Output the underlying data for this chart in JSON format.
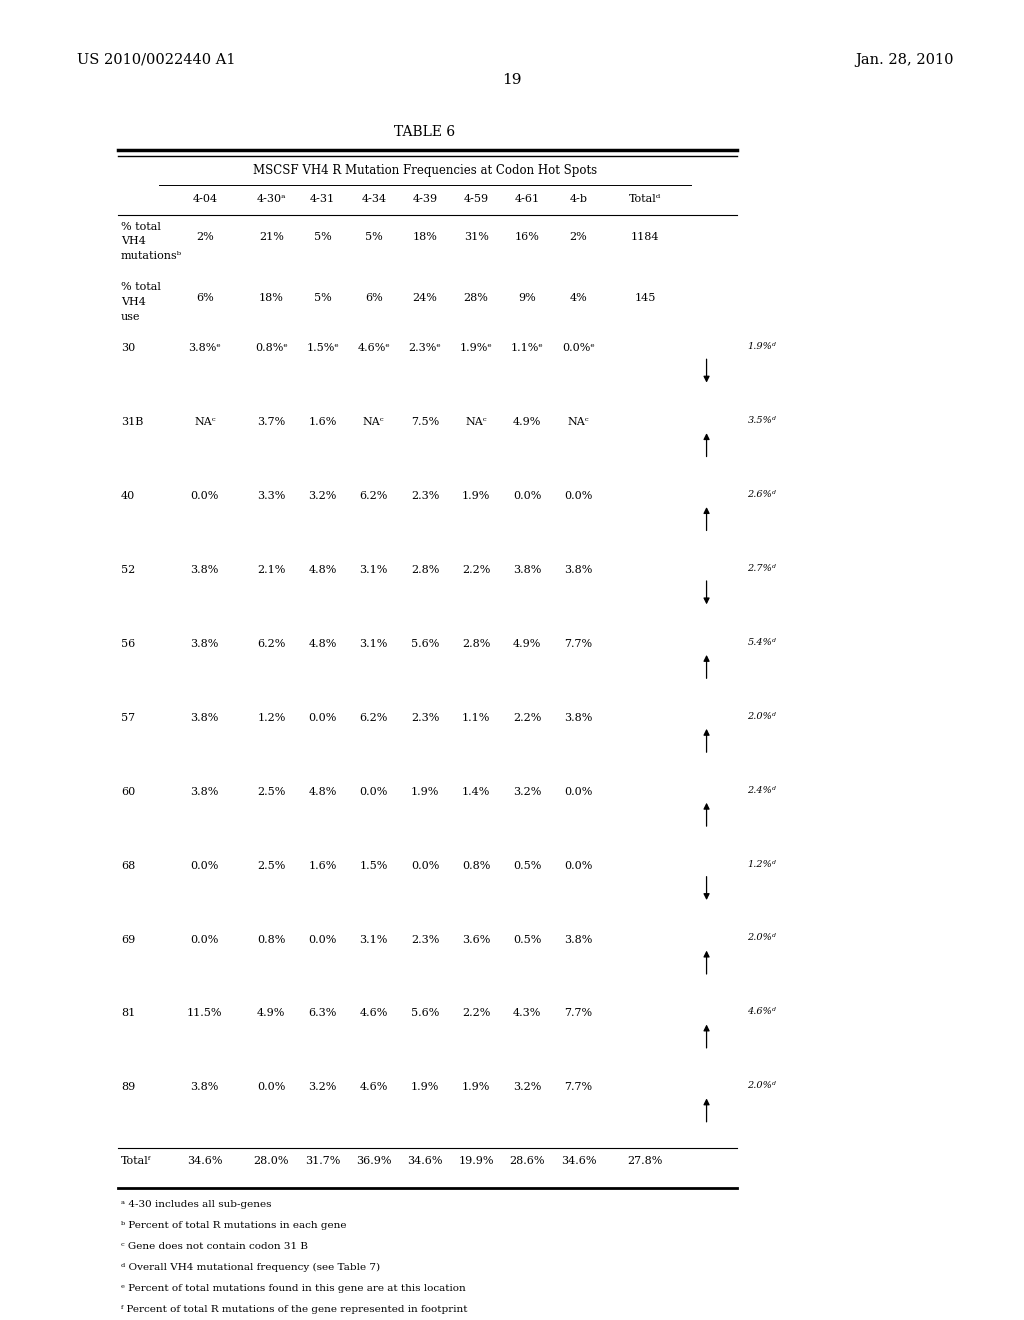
{
  "patent_left": "US 2010/0022440 A1",
  "patent_right": "Jan. 28, 2010",
  "page_number": "19",
  "table_title": "TABLE 6",
  "table_subtitle": "MSCSF VH4 R Mutation Frequencies at Codon Hot Spots",
  "col_headers": [
    "4-04",
    "4-30ᵃ",
    "4-31",
    "4-34",
    "4-39",
    "4-59",
    "4-61",
    "4-b",
    "Totalᵈ"
  ],
  "data_rows": [
    {
      "label": "30",
      "vals": [
        "3.8%ᵉ",
        "0.8%ᵉ",
        "1.5%ᵉ",
        "4.6%ᵉ",
        "2.3%ᵉ",
        "1.9%ᵉ",
        "1.1%ᵉ",
        "0.0%ᵉ"
      ],
      "arrow": "down",
      "arrow_val": "1.9%ᵈ"
    },
    {
      "label": "31B",
      "vals": [
        "NAᶜ",
        "3.7%",
        "1.6%",
        "NAᶜ",
        "7.5%",
        "NAᶜ",
        "4.9%",
        "NAᶜ"
      ],
      "arrow": "up",
      "arrow_val": "3.5%ᵈ"
    },
    {
      "label": "40",
      "vals": [
        "0.0%",
        "3.3%",
        "3.2%",
        "6.2%",
        "2.3%",
        "1.9%",
        "0.0%",
        "0.0%"
      ],
      "arrow": "up",
      "arrow_val": "2.6%ᵈ"
    },
    {
      "label": "52",
      "vals": [
        "3.8%",
        "2.1%",
        "4.8%",
        "3.1%",
        "2.8%",
        "2.2%",
        "3.8%",
        "3.8%"
      ],
      "arrow": "down",
      "arrow_val": "2.7%ᵈ"
    },
    {
      "label": "56",
      "vals": [
        "3.8%",
        "6.2%",
        "4.8%",
        "3.1%",
        "5.6%",
        "2.8%",
        "4.9%",
        "7.7%"
      ],
      "arrow": "up",
      "arrow_val": "5.4%ᵈ"
    },
    {
      "label": "57",
      "vals": [
        "3.8%",
        "1.2%",
        "0.0%",
        "6.2%",
        "2.3%",
        "1.1%",
        "2.2%",
        "3.8%"
      ],
      "arrow": "up",
      "arrow_val": "2.0%ᵈ"
    },
    {
      "label": "60",
      "vals": [
        "3.8%",
        "2.5%",
        "4.8%",
        "0.0%",
        "1.9%",
        "1.4%",
        "3.2%",
        "0.0%"
      ],
      "arrow": "up",
      "arrow_val": "2.4%ᵈ"
    },
    {
      "label": "68",
      "vals": [
        "0.0%",
        "2.5%",
        "1.6%",
        "1.5%",
        "0.0%",
        "0.8%",
        "0.5%",
        "0.0%"
      ],
      "arrow": "down",
      "arrow_val": "1.2%ᵈ"
    },
    {
      "label": "69",
      "vals": [
        "0.0%",
        "0.8%",
        "0.0%",
        "3.1%",
        "2.3%",
        "3.6%",
        "0.5%",
        "3.8%"
      ],
      "arrow": "up",
      "arrow_val": "2.0%ᵈ"
    },
    {
      "label": "81",
      "vals": [
        "11.5%",
        "4.9%",
        "6.3%",
        "4.6%",
        "5.6%",
        "2.2%",
        "4.3%",
        "7.7%"
      ],
      "arrow": "up",
      "arrow_val": "4.6%ᵈ"
    },
    {
      "label": "89",
      "vals": [
        "3.8%",
        "0.0%",
        "3.2%",
        "4.6%",
        "1.9%",
        "1.9%",
        "3.2%",
        "7.7%"
      ],
      "arrow": "up",
      "arrow_val": "2.0%ᵈ"
    }
  ],
  "total_row_label": "Totalᶠ",
  "total_row_vals": [
    "34.6%",
    "28.0%",
    "31.7%",
    "36.9%",
    "34.6%",
    "19.9%",
    "28.6%",
    "34.6%",
    "27.8%"
  ],
  "footnotes": [
    "ᵃ 4-30 includes all sub-genes",
    "ᵇ Percent of total R mutations in each gene",
    "ᶜ Gene does not contain codon 31 B",
    "ᵈ Overall VH4 mutational frequency (see Table 7)",
    "ᵉ Percent of total mutations found in this gene are at this location",
    "ᶠ Percent of total R mutations of the gene represented in footprint"
  ]
}
